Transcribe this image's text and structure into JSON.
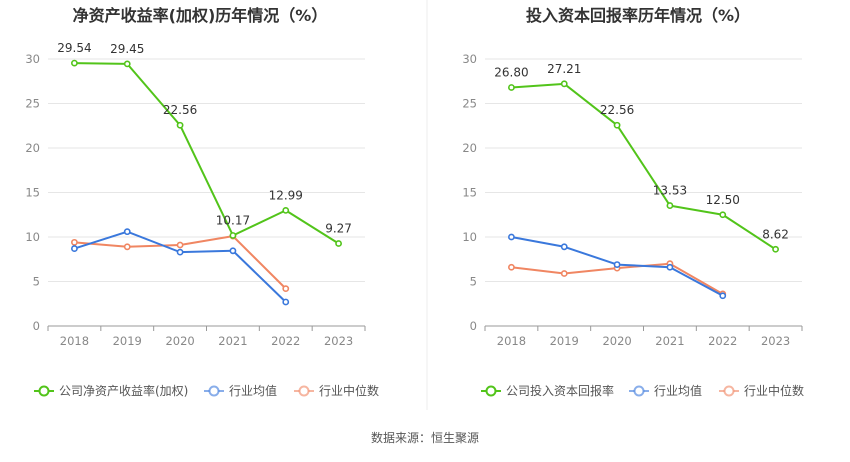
{
  "source": "数据来源：恒生聚源",
  "colors": {
    "company": "#52c41a",
    "average": "#3a78dc",
    "median": "#f08662",
    "grid": "#e6e6e6",
    "axis": "#999999",
    "tick_text": "#888888",
    "title": "#333333"
  },
  "chart_data": [
    {
      "type": "line",
      "title": "净资产收益率(加权)历年情况（%）",
      "categories": [
        "2018",
        "2019",
        "2020",
        "2021",
        "2022",
        "2023"
      ],
      "ylim": [
        0,
        30
      ],
      "yticks": [
        0,
        5,
        10,
        15,
        20,
        25,
        30
      ],
      "grid": true,
      "legend_position": "bottom",
      "series": [
        {
          "name": "公司净资产收益率(加权)",
          "color": "#52c41a",
          "values": [
            29.54,
            29.45,
            22.56,
            10.17,
            12.99,
            9.27
          ],
          "labels": [
            "29.54",
            "29.45",
            "22.56",
            "10.17",
            "12.99",
            "9.27"
          ]
        },
        {
          "name": "行业均值",
          "color": "#3a78dc",
          "values": [
            8.7,
            10.6,
            8.3,
            8.45,
            2.7,
            null
          ]
        },
        {
          "name": "行业中位数",
          "color": "#f08662",
          "values": [
            9.4,
            8.9,
            9.1,
            10.1,
            4.2,
            null
          ]
        }
      ]
    },
    {
      "type": "line",
      "title": "投入资本回报率历年情况（%）",
      "categories": [
        "2018",
        "2019",
        "2020",
        "2021",
        "2022",
        "2023"
      ],
      "ylim": [
        0,
        30
      ],
      "yticks": [
        0,
        5,
        10,
        15,
        20,
        25,
        30
      ],
      "grid": true,
      "legend_position": "bottom",
      "series": [
        {
          "name": "公司投入资本回报率",
          "color": "#52c41a",
          "values": [
            26.8,
            27.21,
            22.56,
            13.53,
            12.5,
            8.62
          ],
          "labels": [
            "26.80",
            "27.21",
            "22.56",
            "13.53",
            "12.50",
            "8.62"
          ]
        },
        {
          "name": "行业均值",
          "color": "#3a78dc",
          "values": [
            10.0,
            8.9,
            6.9,
            6.6,
            3.4,
            null
          ]
        },
        {
          "name": "行业中位数",
          "color": "#f08662",
          "values": [
            6.6,
            5.9,
            6.5,
            7.0,
            3.6,
            null
          ]
        }
      ]
    }
  ]
}
